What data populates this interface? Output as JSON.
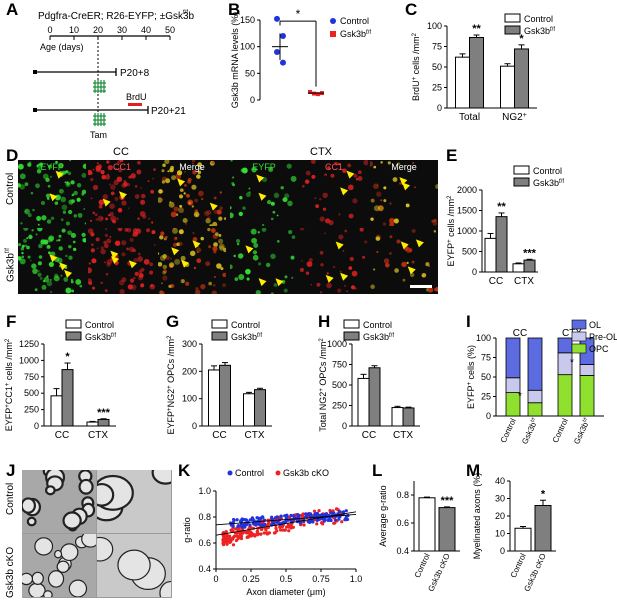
{
  "colors": {
    "control": "#ffffff",
    "gsk": "#7f7f7f",
    "blue": "#2233dd",
    "red": "#ee2222",
    "ol": "#5c6bdf",
    "preol": "#c9c9ee",
    "opc": "#8fe02f",
    "eyfp": "#33dd33",
    "cc1": "#dd2222",
    "arrow": "#ffee00"
  },
  "labels": {
    "A": "A",
    "B": "B",
    "C": "C",
    "D": "D",
    "E": "E",
    "F": "F",
    "G": "G",
    "H": "H",
    "I": "I",
    "J": "J",
    "K": "K",
    "L": "L",
    "M": "M"
  },
  "panelA": {
    "title": "Pdgfra-CreER; R26-EYFP; ±Gsk3b",
    "title_sup": "f/f",
    "ticks": [
      "0",
      "10",
      "20",
      "30",
      "40",
      "50"
    ],
    "age_label": "Age (days)",
    "row1_end": "P20+8",
    "row2_end": "P20+21",
    "brdu": "BrdU",
    "tam": "Tam"
  },
  "panelD": {
    "group_cc": "CC",
    "group_ctx": "CTX",
    "channels": [
      "EYFP",
      "CC1",
      "Merge",
      "EYFP",
      "CC1",
      "Merge"
    ],
    "row_control": "Control",
    "row_gsk": "Gsk3b",
    "row_gsk_sup": "f/f"
  },
  "panelJ": {
    "row_control": "Control",
    "row_gsk": "Gsk3b cKO"
  },
  "legend": {
    "control": "Control",
    "gsk": "Gsk3b",
    "gsk_sup": "f/f",
    "gsk_cko": "Gsk3b cKO"
  },
  "chart_data": [
    {
      "id": "B",
      "type": "scatter",
      "ylabel": "Gsk3b mRNA levels (%)",
      "ylim": [
        0,
        150
      ],
      "yticks": [
        0,
        50,
        100,
        150
      ],
      "groups": [
        "Control",
        "Gsk3b f/f"
      ],
      "series": [
        {
          "name": "Control",
          "values": [
            152,
            120,
            90,
            70
          ],
          "mean": 100,
          "sem": 25
        },
        {
          "name": "Gsk3b f/f",
          "values": [
            15,
            12,
            11,
            13
          ],
          "mean": 13,
          "sem": 1
        }
      ],
      "significance": "*"
    },
    {
      "id": "C",
      "type": "bar",
      "ylabel": "BrdU+ cells /mm2",
      "ylim": [
        0,
        100
      ],
      "yticks": [
        0,
        25,
        50,
        75,
        100
      ],
      "categories": [
        "Total",
        "NG2+"
      ],
      "series": [
        {
          "name": "Control",
          "values": [
            62,
            51
          ],
          "err": [
            4,
            3
          ]
        },
        {
          "name": "Gsk3b f/f",
          "values": [
            86,
            72
          ],
          "err": [
            3,
            5
          ]
        }
      ],
      "significance": [
        "**",
        "*"
      ]
    },
    {
      "id": "E",
      "type": "bar",
      "ylabel": "EYFP+ cells /mm2",
      "ylim": [
        0,
        2000
      ],
      "yticks": [
        0,
        500,
        1000,
        1500,
        2000
      ],
      "categories": [
        "CC",
        "CTX"
      ],
      "series": [
        {
          "name": "Control",
          "values": [
            820,
            200
          ],
          "err": [
            120,
            20
          ]
        },
        {
          "name": "Gsk3b f/f",
          "values": [
            1350,
            290
          ],
          "err": [
            90,
            20
          ]
        }
      ],
      "significance": [
        "**",
        "***"
      ]
    },
    {
      "id": "F",
      "type": "bar",
      "ylabel": "EYFP+CC1+ cells /mm2",
      "ylim": [
        0,
        1250
      ],
      "yticks": [
        0,
        250,
        500,
        750,
        1000,
        1250
      ],
      "categories": [
        "CC",
        "CTX"
      ],
      "series": [
        {
          "name": "Control",
          "values": [
            460,
            60
          ],
          "err": [
            110,
            10
          ]
        },
        {
          "name": "Gsk3b f/f",
          "values": [
            860,
            100
          ],
          "err": [
            100,
            10
          ]
        }
      ],
      "significance": [
        "*",
        "***"
      ]
    },
    {
      "id": "G",
      "type": "bar",
      "ylabel": "EYFP+NG2+ OPCs /mm2",
      "ylim": [
        0,
        300
      ],
      "yticks": [
        0,
        100,
        200,
        300
      ],
      "categories": [
        "CC",
        "CTX"
      ],
      "series": [
        {
          "name": "Control",
          "values": [
            205,
            118
          ],
          "err": [
            15,
            5
          ]
        },
        {
          "name": "Gsk3b f/f",
          "values": [
            222,
            133
          ],
          "err": [
            10,
            5
          ]
        }
      ],
      "significance": [
        "",
        ""
      ]
    },
    {
      "id": "H",
      "type": "bar",
      "ylabel": "Total NG2+ OPCs /mm2",
      "ylim": [
        0,
        1000
      ],
      "yticks": [
        0,
        250,
        500,
        750,
        1000
      ],
      "categories": [
        "CC",
        "CTX"
      ],
      "series": [
        {
          "name": "Control",
          "values": [
            580,
            225
          ],
          "err": [
            50,
            15
          ]
        },
        {
          "name": "Gsk3b f/f",
          "values": [
            710,
            220
          ],
          "err": [
            25,
            10
          ]
        }
      ],
      "significance": [
        "",
        ""
      ]
    },
    {
      "id": "I",
      "type": "bar",
      "ylabel": "EYFP+ cells (%)",
      "ylim": [
        0,
        100
      ],
      "yticks": [
        0,
        25,
        50,
        75,
        100
      ],
      "groups": [
        "CC",
        "CTX"
      ],
      "categories": [
        "Control",
        "Gsk3b f/f",
        "Control",
        "Gsk3b f/f"
      ],
      "series": [
        {
          "name": "OPC",
          "values": [
            30,
            17,
            53,
            52
          ]
        },
        {
          "name": "Pre-OL",
          "values": [
            19,
            16,
            28,
            14
          ]
        },
        {
          "name": "OL",
          "values": [
            51,
            67,
            19,
            34
          ]
        }
      ],
      "significance": [
        "*",
        "*"
      ]
    },
    {
      "id": "K",
      "type": "scatter",
      "xlabel": "Axon diameter (μm)",
      "ylabel": "g-ratio",
      "xlim": [
        0,
        1.0
      ],
      "ylim": [
        0.4,
        1.0
      ],
      "xticks": [
        0,
        0.25,
        0.5,
        0.75,
        1.0
      ],
      "yticks": [
        0.4,
        0.6,
        0.8,
        1.0
      ],
      "series": [
        {
          "name": "Control",
          "fit": {
            "slope": 0.08,
            "intercept": 0.74
          }
        },
        {
          "name": "Gsk3b cKO",
          "fit": {
            "slope": 0.18,
            "intercept": 0.66
          }
        }
      ]
    },
    {
      "id": "L",
      "type": "bar",
      "ylabel": "Average g-ratio",
      "ylim": [
        0.4,
        0.9
      ],
      "yticks": [
        0.4,
        0.6,
        0.8
      ],
      "categories": [
        "Control",
        "Gsk3b cKO"
      ],
      "values": [
        0.78,
        0.71
      ],
      "err": [
        0.005,
        0.005
      ],
      "significance": "***"
    },
    {
      "id": "M",
      "type": "bar",
      "ylabel": "Myelinated axons (%)",
      "ylim": [
        0,
        40
      ],
      "yticks": [
        0,
        10,
        20,
        30,
        40
      ],
      "categories": [
        "Control",
        "Gsk3b cKO"
      ],
      "values": [
        13,
        26
      ],
      "err": [
        1,
        3
      ],
      "significance": "*"
    }
  ]
}
